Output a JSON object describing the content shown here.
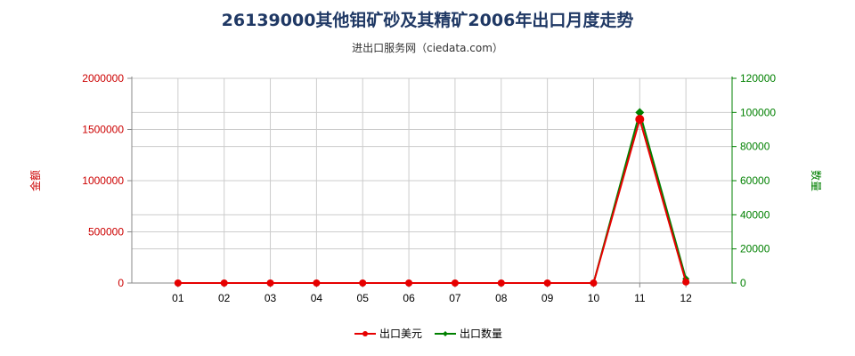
{
  "chart_data": {
    "type": "line",
    "title": "26139000其他钼矿砂及其精矿2006年出口月度走势",
    "subtitle": "进出口服务网（ciedata.com）",
    "categories": [
      "01",
      "02",
      "03",
      "04",
      "05",
      "06",
      "07",
      "08",
      "09",
      "10",
      "11",
      "12"
    ],
    "y_left": {
      "label": "金额",
      "range": [
        0,
        2000000
      ],
      "ticks": [
        "0",
        "500000",
        "1000000",
        "1500000",
        "2000000"
      ],
      "color": "#cc0000"
    },
    "y_right": {
      "label": "数量",
      "range": [
        0,
        120000
      ],
      "ticks": [
        "0",
        "20000",
        "40000",
        "60000",
        "80000",
        "100000",
        "120000"
      ],
      "color": "#008000"
    },
    "series": [
      {
        "name": "出口美元",
        "axis": "left",
        "color": "#e60000",
        "marker": "circle",
        "values": [
          0,
          0,
          0,
          0,
          0,
          0,
          0,
          0,
          0,
          0,
          1600000,
          10000
        ]
      },
      {
        "name": "出口数量",
        "axis": "right",
        "color": "#008000",
        "marker": "diamond",
        "values": [
          0,
          0,
          0,
          0,
          0,
          0,
          0,
          0,
          0,
          0,
          100000,
          2500
        ]
      }
    ],
    "grid": true,
    "legend": "bottom"
  }
}
